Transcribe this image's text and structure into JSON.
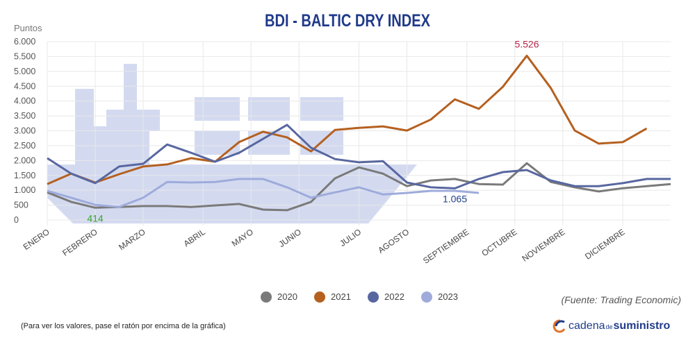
{
  "chart_data": {
    "type": "line",
    "title": "BDI - BALTIC DRY INDEX",
    "y_label": "Puntos",
    "x": [
      1,
      3,
      5,
      7,
      9,
      11,
      13,
      15,
      17,
      19,
      21,
      23,
      25,
      27,
      29,
      31,
      33,
      35,
      37,
      39,
      41,
      43,
      45,
      47,
      49,
      51,
      53
    ],
    "xlim": [
      1,
      53
    ],
    "xticks": [
      {
        "value": 1,
        "label": "ENERO"
      },
      {
        "value": 5,
        "label": "FEBRERO"
      },
      {
        "value": 9,
        "label": "MARZO"
      },
      {
        "value": 14,
        "label": "ABRIL"
      },
      {
        "value": 18,
        "label": "MAYO"
      },
      {
        "value": 22,
        "label": "JUNIO"
      },
      {
        "value": 27,
        "label": "JULIO"
      },
      {
        "value": 31,
        "label": "AGOSTO"
      },
      {
        "value": 36,
        "label": "SEPTIEMBRE"
      },
      {
        "value": 40,
        "label": "OCTUBRE"
      },
      {
        "value": 44,
        "label": "NOVIEMBRE"
      },
      {
        "value": 49,
        "label": "DICIEMBRE"
      }
    ],
    "ylim": [
      0,
      6000
    ],
    "yticks": [
      0,
      500,
      {
        "value": 1000,
        "label": "1.000"
      },
      {
        "value": 1500,
        "label": "1.500"
      },
      {
        "value": 2000,
        "label": "2.000"
      },
      {
        "value": 2500,
        "label": "2.500"
      },
      {
        "value": 3000,
        "label": "3.000"
      },
      {
        "value": 3500,
        "label": "3.500"
      },
      {
        "value": 4000,
        "label": "4.000"
      },
      {
        "value": 4500,
        "label": "4.500"
      },
      {
        "value": 5000,
        "label": "5.000"
      },
      {
        "value": 5500,
        "label": "5.500"
      },
      {
        "value": 6000,
        "label": "6.000"
      }
    ],
    "grid": true,
    "series": [
      {
        "name": "2020",
        "color": "#7a7a7a",
        "value_label_color": "#3aa62b",
        "value_label_position": "below",
        "values": [
          930,
          610,
          414,
          440,
          470,
          470,
          440,
          490,
          540,
          350,
          330,
          610,
          1400,
          1770,
          1560,
          1140,
          1330,
          1380,
          1210,
          1190,
          1910,
          1280,
          1100,
          960,
          1070,
          1140,
          1210
        ],
        "value_labels": [
          null,
          null,
          "414",
          null,
          null,
          null,
          null,
          null,
          null,
          null,
          null,
          null,
          null,
          null,
          null,
          null,
          null,
          null,
          null,
          null,
          null,
          null,
          null,
          null,
          null,
          null,
          null
        ]
      },
      {
        "name": "2021",
        "color": "#b5601f",
        "value_label_color": "#b5244a",
        "value_label_position": "above",
        "values": [
          1210,
          1560,
          1260,
          1540,
          1800,
          1870,
          2080,
          1960,
          2620,
          2970,
          2780,
          2310,
          3030,
          3100,
          3150,
          3010,
          3380,
          4060,
          3740,
          4480,
          5526,
          4440,
          3010,
          2570,
          2620,
          3080,
          null
        ],
        "value_labels": [
          null,
          null,
          null,
          null,
          null,
          null,
          null,
          null,
          null,
          null,
          null,
          null,
          null,
          null,
          null,
          null,
          null,
          null,
          null,
          null,
          "5.526",
          null,
          null,
          null,
          null,
          null,
          null
        ]
      },
      {
        "name": "2022",
        "color": "#5867a0",
        "value_label_color": "#1f3f8a",
        "value_label_position": "below",
        "values": [
          2080,
          1560,
          1240,
          1800,
          1890,
          2540,
          2260,
          1960,
          2260,
          2730,
          3200,
          2430,
          2050,
          1940,
          1980,
          1260,
          1100,
          1065,
          1380,
          1610,
          1680,
          1330,
          1140,
          1140,
          1240,
          1380,
          1380
        ],
        "value_labels": [
          null,
          null,
          null,
          null,
          null,
          null,
          null,
          null,
          null,
          null,
          null,
          null,
          null,
          null,
          null,
          null,
          null,
          "1.065",
          null,
          null,
          null,
          null,
          null,
          null,
          null,
          null,
          null
        ]
      },
      {
        "name": "2023",
        "color": "#9eabdb",
        "value_label_color": "#9eabdb",
        "value_label_position": "below",
        "values": [
          980,
          750,
          510,
          440,
          750,
          1280,
          1260,
          1280,
          1380,
          1380,
          1100,
          750,
          930,
          1100,
          860,
          910,
          980,
          980,
          910,
          null,
          null,
          null,
          null,
          null,
          null,
          null,
          null
        ],
        "value_labels": [
          null,
          null,
          null,
          null,
          null,
          null,
          null,
          null,
          null,
          null,
          null,
          null,
          null,
          null,
          null,
          null,
          null,
          null,
          null,
          null,
          null,
          null,
          null,
          null,
          null,
          null,
          null
        ]
      }
    ]
  },
  "source": "(Fuente: Trading Economic)",
  "footnote": "(Para ver los valores, pase el ratón por encima de la gráfica)",
  "brand": {
    "first": "cadena",
    "middle": "de",
    "last": "suministro"
  }
}
